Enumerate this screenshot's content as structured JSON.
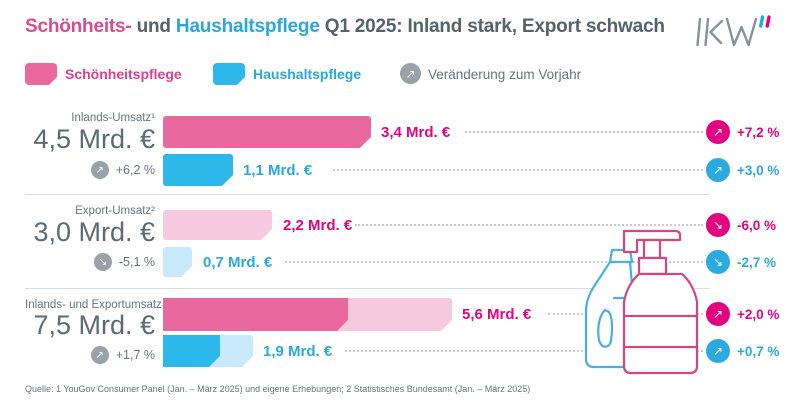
{
  "title": {
    "part1": "Schönheits-",
    "part2": " und ",
    "part3": "Haushaltspflege",
    "part4": " Q1 2025: Inland stark, Export schwach"
  },
  "logo": {
    "name": "IKW"
  },
  "icons": {
    "arrow_up": "↗",
    "arrow_down": "↘"
  },
  "legend": {
    "beauty": "Schönheitspflege",
    "household": "Haushaltspflege",
    "change": "Veränderung zum Vorjahr"
  },
  "colors": {
    "beauty_solid": "#e9699f",
    "beauty_light": "#f7c9de",
    "beauty_accent": "#e2047e",
    "household_solid": "#2cb9e9",
    "household_light": "#c7e9f9",
    "household_accent": "#2baade",
    "neutral_gray": "#9aa1a8",
    "text_gray": "#5d6a73"
  },
  "chart_data": {
    "type": "bar",
    "title": "Schönheits- und Haushaltspflege Q1 2025: Inland stark, Export schwach",
    "unit": "Mrd. €",
    "series_names": [
      "Schönheitspflege",
      "Haushaltspflege"
    ],
    "legend_position": "top",
    "grid": false,
    "rows": [
      {
        "label": "Inlands-Umsatz¹",
        "total_label": "4,5 Mrd. €",
        "total_value": 4.5,
        "total_change": "+6,2 %",
        "total_dir": "up",
        "bars": [
          {
            "series": "Schönheitspflege",
            "value": 3.4,
            "value_label": "3,4 Mrd. €",
            "change": "+7,2 %",
            "dir": "up",
            "px": {
              "solid": 208,
              "total": 208
            }
          },
          {
            "series": "Haushaltspflege",
            "value": 1.1,
            "value_label": "1,1 Mrd. €",
            "change": "+3,0 %",
            "dir": "up",
            "px": {
              "solid": 70,
              "total": 70
            }
          }
        ]
      },
      {
        "label": "Export-Umsatz²",
        "total_label": "3,0 Mrd. €",
        "total_value": 3.0,
        "total_change": "-5,1 %",
        "total_dir": "down",
        "bars": [
          {
            "series": "Schönheitspflege",
            "value": 2.2,
            "value_label": "2,2 Mrd. €",
            "change": "-6,0 %",
            "dir": "down",
            "px": {
              "solid": 0,
              "total": 109
            }
          },
          {
            "series": "Haushaltspflege",
            "value": 0.7,
            "value_label": "0,7 Mrd. €",
            "change": "-2,7 %",
            "dir": "down",
            "px": {
              "solid": 0,
              "total": 29
            }
          }
        ]
      },
      {
        "label": "Inlands- und Exportumsatz",
        "total_label": "7,5 Mrd. €",
        "total_value": 7.5,
        "total_change": "+1,7 %",
        "total_dir": "up",
        "bars": [
          {
            "series": "Schönheitspflege",
            "value": 5.6,
            "value_label": "5,6 Mrd. €",
            "change": "+2,0 %",
            "dir": "up",
            "px": {
              "solid": 185,
              "total": 289
            }
          },
          {
            "series": "Haushaltspflege",
            "value": 1.9,
            "value_label": "1,9 Mrd. €",
            "change": "+0,7 %",
            "dir": "up",
            "px": {
              "solid": 57,
              "total": 90
            }
          }
        ]
      }
    ]
  },
  "footer": {
    "source": "Quelle: 1 YouGov Consumer Panel (Jan. – März 2025) und eigene Erhebungen;  2 Statistisches Bundesamt (Jan. – März 2025)"
  }
}
